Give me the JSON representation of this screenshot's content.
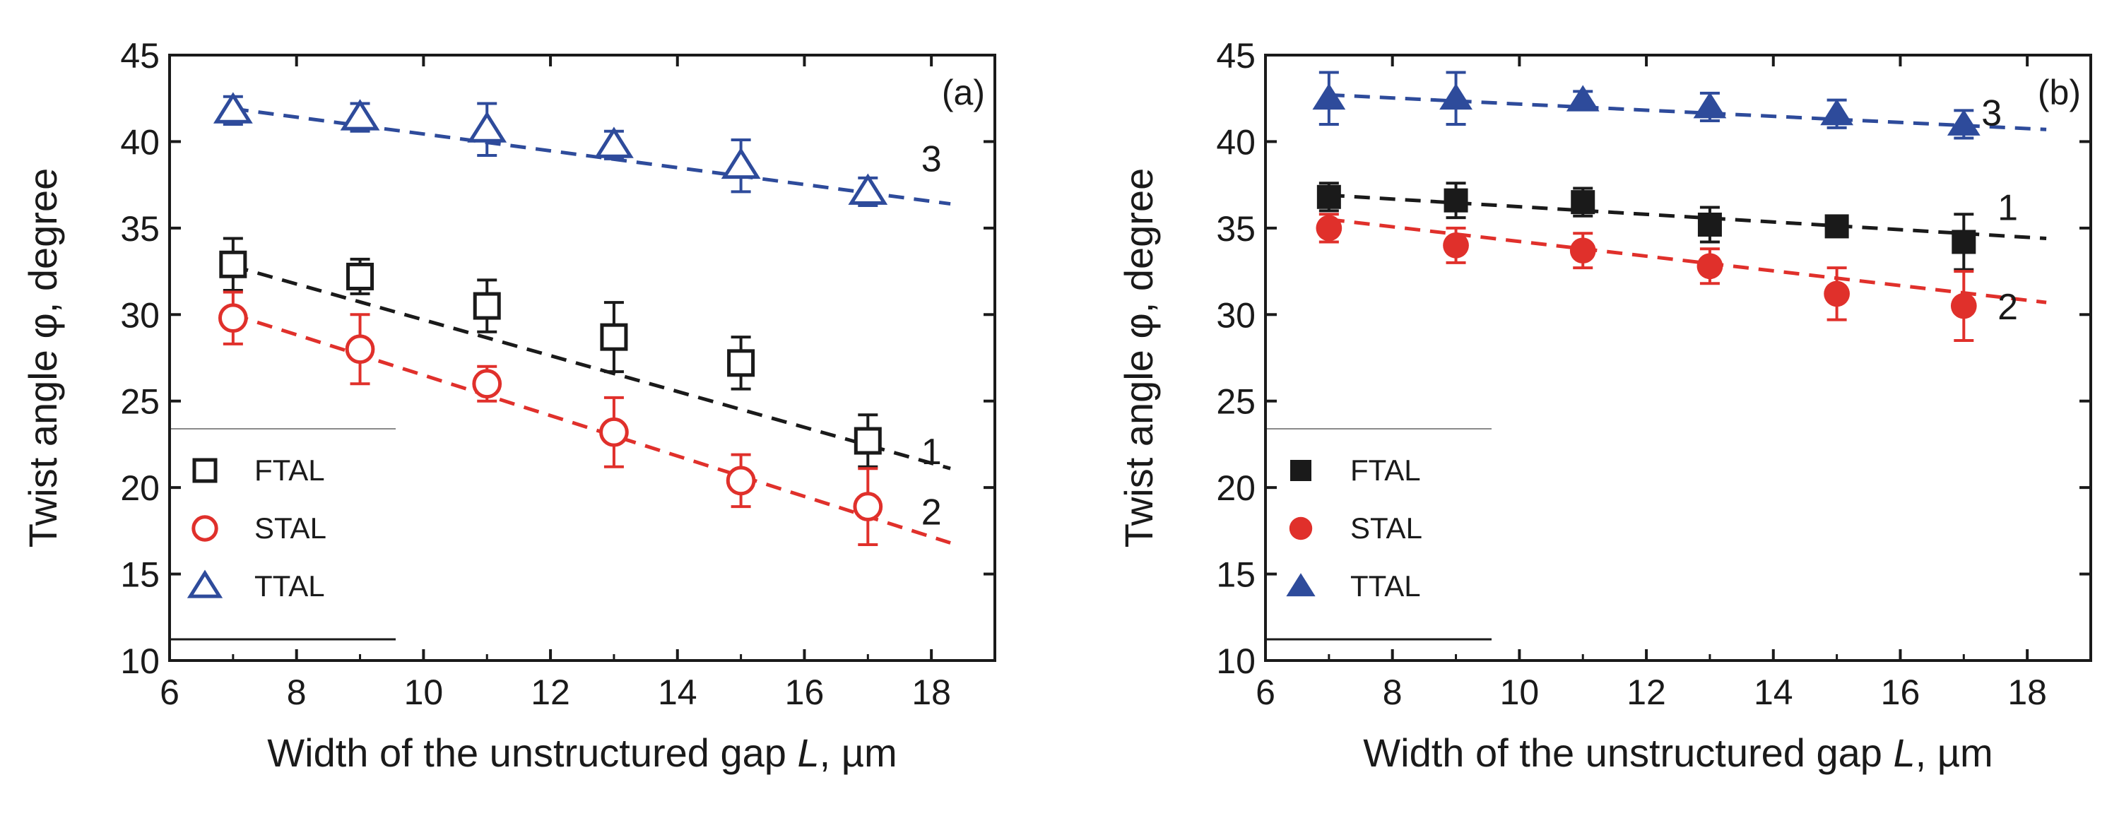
{
  "chart_data": [
    {
      "type": "scatter",
      "panel_label": "(a)",
      "xlabel_prefix": "Width of the unstructured gap ",
      "xlabel_var": "L",
      "xlabel_suffix": ", µm",
      "ylabel": "Twist angle φ, degree",
      "xlim": [
        6,
        19
      ],
      "ylim": [
        10,
        45
      ],
      "xticks": [
        6,
        8,
        10,
        12,
        14,
        16,
        18
      ],
      "yticks": [
        10,
        15,
        20,
        25,
        30,
        35,
        40,
        45
      ],
      "marker_fill": "open",
      "series": [
        {
          "name": "FTAL",
          "curve_label": "1",
          "marker": "square",
          "color": "#1a1a1a",
          "x": [
            7,
            9,
            11,
            13,
            15,
            17
          ],
          "y": [
            32.9,
            32.2,
            30.5,
            28.7,
            27.2,
            22.7
          ],
          "err": [
            1.5,
            1.0,
            1.5,
            2.0,
            1.5,
            1.5
          ],
          "fit": {
            "x": [
              7,
              18.3
            ],
            "y": [
              32.8,
              21.1
            ]
          }
        },
        {
          "name": "STAL",
          "curve_label": "2",
          "marker": "circle",
          "color": "#e0302b",
          "x": [
            7,
            9,
            11,
            13,
            15,
            17
          ],
          "y": [
            29.8,
            28.0,
            26.0,
            23.2,
            20.4,
            18.9
          ],
          "err": [
            1.5,
            2.0,
            1.0,
            2.0,
            1.5,
            2.2
          ],
          "fit": {
            "x": [
              7,
              18.3
            ],
            "y": [
              30.0,
              16.8
            ]
          }
        },
        {
          "name": "TTAL",
          "curve_label": "3",
          "marker": "triangle",
          "color": "#2e4b9b",
          "x": [
            7,
            9,
            11,
            13,
            15,
            17
          ],
          "y": [
            41.8,
            41.4,
            40.7,
            39.8,
            38.6,
            37.1
          ],
          "err": [
            0.8,
            0.8,
            1.5,
            0.8,
            1.5,
            0.8
          ],
          "fit": {
            "x": [
              7,
              18.3
            ],
            "y": [
              41.9,
              36.4
            ]
          }
        }
      ]
    },
    {
      "type": "scatter",
      "panel_label": "(b)",
      "xlabel_prefix": "Width of the unstructured gap ",
      "xlabel_var": "L",
      "xlabel_suffix": ", µm",
      "ylabel": "Twist angle φ, degree",
      "xlim": [
        6,
        19
      ],
      "ylim": [
        10,
        45
      ],
      "xticks": [
        6,
        8,
        10,
        12,
        14,
        16,
        18
      ],
      "yticks": [
        10,
        15,
        20,
        25,
        30,
        35,
        40,
        45
      ],
      "marker_fill": "filled",
      "series": [
        {
          "name": "FTAL",
          "curve_label": "1",
          "marker": "square",
          "color": "#1a1a1a",
          "x": [
            7,
            9,
            11,
            13,
            15,
            17
          ],
          "y": [
            36.8,
            36.6,
            36.5,
            35.2,
            35.1,
            34.2
          ],
          "err": [
            0.8,
            1.0,
            0.8,
            1.0,
            0.5,
            1.6
          ],
          "fit": {
            "x": [
              7,
              18.3
            ],
            "y": [
              36.9,
              34.4
            ]
          }
        },
        {
          "name": "STAL",
          "curve_label": "2",
          "marker": "circle",
          "color": "#e0302b",
          "x": [
            7,
            9,
            11,
            13,
            15,
            17
          ],
          "y": [
            35.0,
            34.0,
            33.7,
            32.8,
            31.2,
            30.5
          ],
          "err": [
            0.8,
            1.0,
            1.0,
            1.0,
            1.5,
            2.0
          ],
          "fit": {
            "x": [
              7,
              18.3
            ],
            "y": [
              35.5,
              30.7
            ]
          }
        },
        {
          "name": "TTAL",
          "curve_label": "3",
          "marker": "triangle",
          "color": "#2e4b9b",
          "x": [
            7,
            9,
            11,
            13,
            15,
            17
          ],
          "y": [
            42.5,
            42.5,
            42.4,
            42.0,
            41.6,
            41.0
          ],
          "err": [
            1.5,
            1.5,
            0.5,
            0.8,
            0.8,
            0.8
          ],
          "fit": {
            "x": [
              7,
              18.3
            ],
            "y": [
              42.7,
              40.7
            ]
          }
        }
      ]
    }
  ]
}
